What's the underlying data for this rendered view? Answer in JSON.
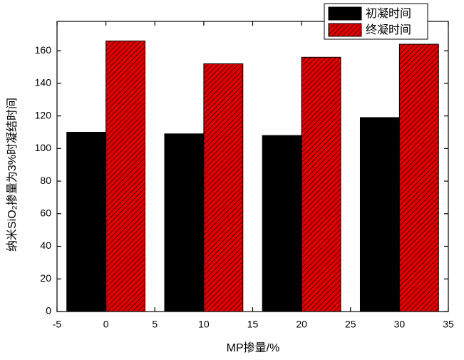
{
  "chart_data": {
    "type": "bar",
    "x_label": "MP掺量/%",
    "y_label": "纳米SiO₂掺量为3%时凝结时间",
    "x": [
      0,
      10,
      20,
      30
    ],
    "series": [
      {
        "name": "初凝时间",
        "color": "#000000",
        "values": [
          110,
          109,
          108,
          119
        ]
      },
      {
        "name": "终凝时间",
        "color": "#e00000",
        "values": [
          166,
          152,
          156,
          164
        ]
      }
    ],
    "xlim": [
      -5,
      35
    ],
    "xticks": [
      -5,
      0,
      5,
      10,
      15,
      20,
      25,
      30,
      35
    ],
    "ylim": [
      0,
      178
    ],
    "yticks": [
      0,
      20,
      40,
      60,
      80,
      100,
      120,
      140,
      160
    ],
    "legend": "top-right",
    "hatch": "diagonal"
  }
}
